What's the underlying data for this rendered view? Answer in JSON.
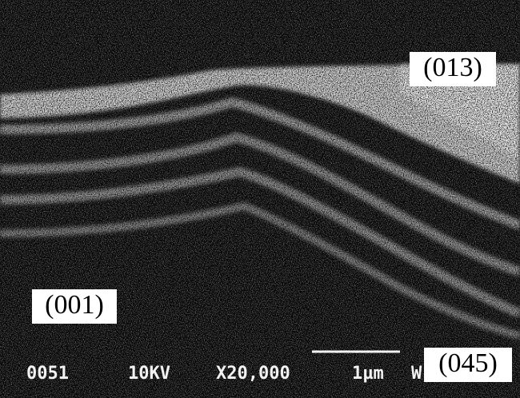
{
  "labels": {
    "top_right": "(013)",
    "bottom_left": "(001)",
    "bottom_right": "(045)"
  },
  "info_bar": {
    "image_number": "0051",
    "voltage": "10KV",
    "magnification": "X20,000",
    "scale": "1µm",
    "mode": "W"
  }
}
